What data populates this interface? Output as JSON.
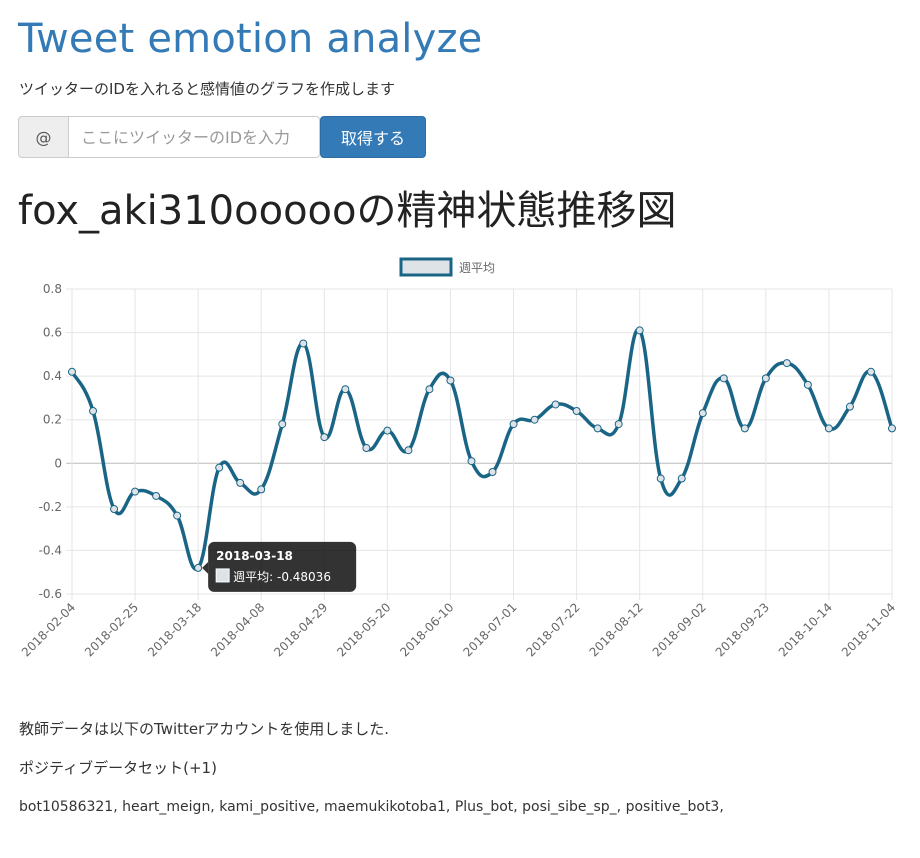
{
  "header": {
    "title": "Tweet emotion analyze",
    "subtitle": "ツイッターのIDを入れると感情値のグラフを作成します"
  },
  "search": {
    "addon": "@",
    "placeholder": "ここにツイッターのIDを入力",
    "value": "",
    "button_label": "取得する"
  },
  "colors": {
    "accent": "#337ab7",
    "series_line": "#1a6586",
    "series_fill": "#dde3e6"
  },
  "chart_data": {
    "type": "line",
    "title": "fox_aki310oooooの精神状態推移図",
    "legend": {
      "position": "top",
      "entries": [
        "週平均"
      ]
    },
    "grid": true,
    "ylim": [
      -0.6,
      0.8
    ],
    "yticks": [
      "0.8",
      "0.6",
      "0.4",
      "0.2",
      "0",
      "-0.2",
      "-0.4",
      "-0.6"
    ],
    "xtick_labels": [
      "2018-02-04",
      "2018-02-25",
      "2018-03-18",
      "2018-04-08",
      "2018-04-29",
      "2018-05-20",
      "2018-06-10",
      "2018-07-01",
      "2018-07-22",
      "2018-08-12",
      "2018-09-02",
      "2018-09-23",
      "2018-10-14",
      "2018-11-04"
    ],
    "x": [
      "2018-02-04",
      "2018-02-11",
      "2018-02-18",
      "2018-02-25",
      "2018-03-04",
      "2018-03-11",
      "2018-03-18",
      "2018-03-25",
      "2018-04-01",
      "2018-04-08",
      "2018-04-15",
      "2018-04-22",
      "2018-04-29",
      "2018-05-06",
      "2018-05-13",
      "2018-05-20",
      "2018-05-27",
      "2018-06-03",
      "2018-06-10",
      "2018-06-17",
      "2018-06-24",
      "2018-07-01",
      "2018-07-08",
      "2018-07-15",
      "2018-07-22",
      "2018-07-29",
      "2018-08-05",
      "2018-08-12",
      "2018-08-19",
      "2018-08-26",
      "2018-09-02",
      "2018-09-09",
      "2018-09-16",
      "2018-09-23",
      "2018-09-30",
      "2018-10-07",
      "2018-10-14",
      "2018-10-21",
      "2018-10-28",
      "2018-11-04"
    ],
    "series": [
      {
        "name": "週平均",
        "values": [
          0.42,
          0.24,
          -0.21,
          -0.13,
          -0.15,
          -0.24,
          -0.48036,
          -0.02,
          -0.09,
          -0.12,
          0.18,
          0.55,
          0.12,
          0.34,
          0.07,
          0.15,
          0.06,
          0.34,
          0.38,
          0.01,
          -0.04,
          0.18,
          0.2,
          0.27,
          0.24,
          0.16,
          0.18,
          0.61,
          -0.07,
          -0.07,
          0.23,
          0.39,
          0.16,
          0.39,
          0.46,
          0.36,
          0.16,
          0.26,
          0.42,
          0.16
        ]
      }
    ],
    "tooltip": {
      "title": "2018-03-18",
      "label": "週平均: -0.48036",
      "point_index": 6
    }
  },
  "footer": {
    "note": "教師データは以下のTwitterアカウントを使用しました.",
    "positive_set_label": "ポジティブデータセット(+1)",
    "positive_accounts": "bot10586321, heart_meign, kami_positive, maemukikotoba1, Plus_bot, posi_sibe_sp_, positive_bot3,"
  }
}
